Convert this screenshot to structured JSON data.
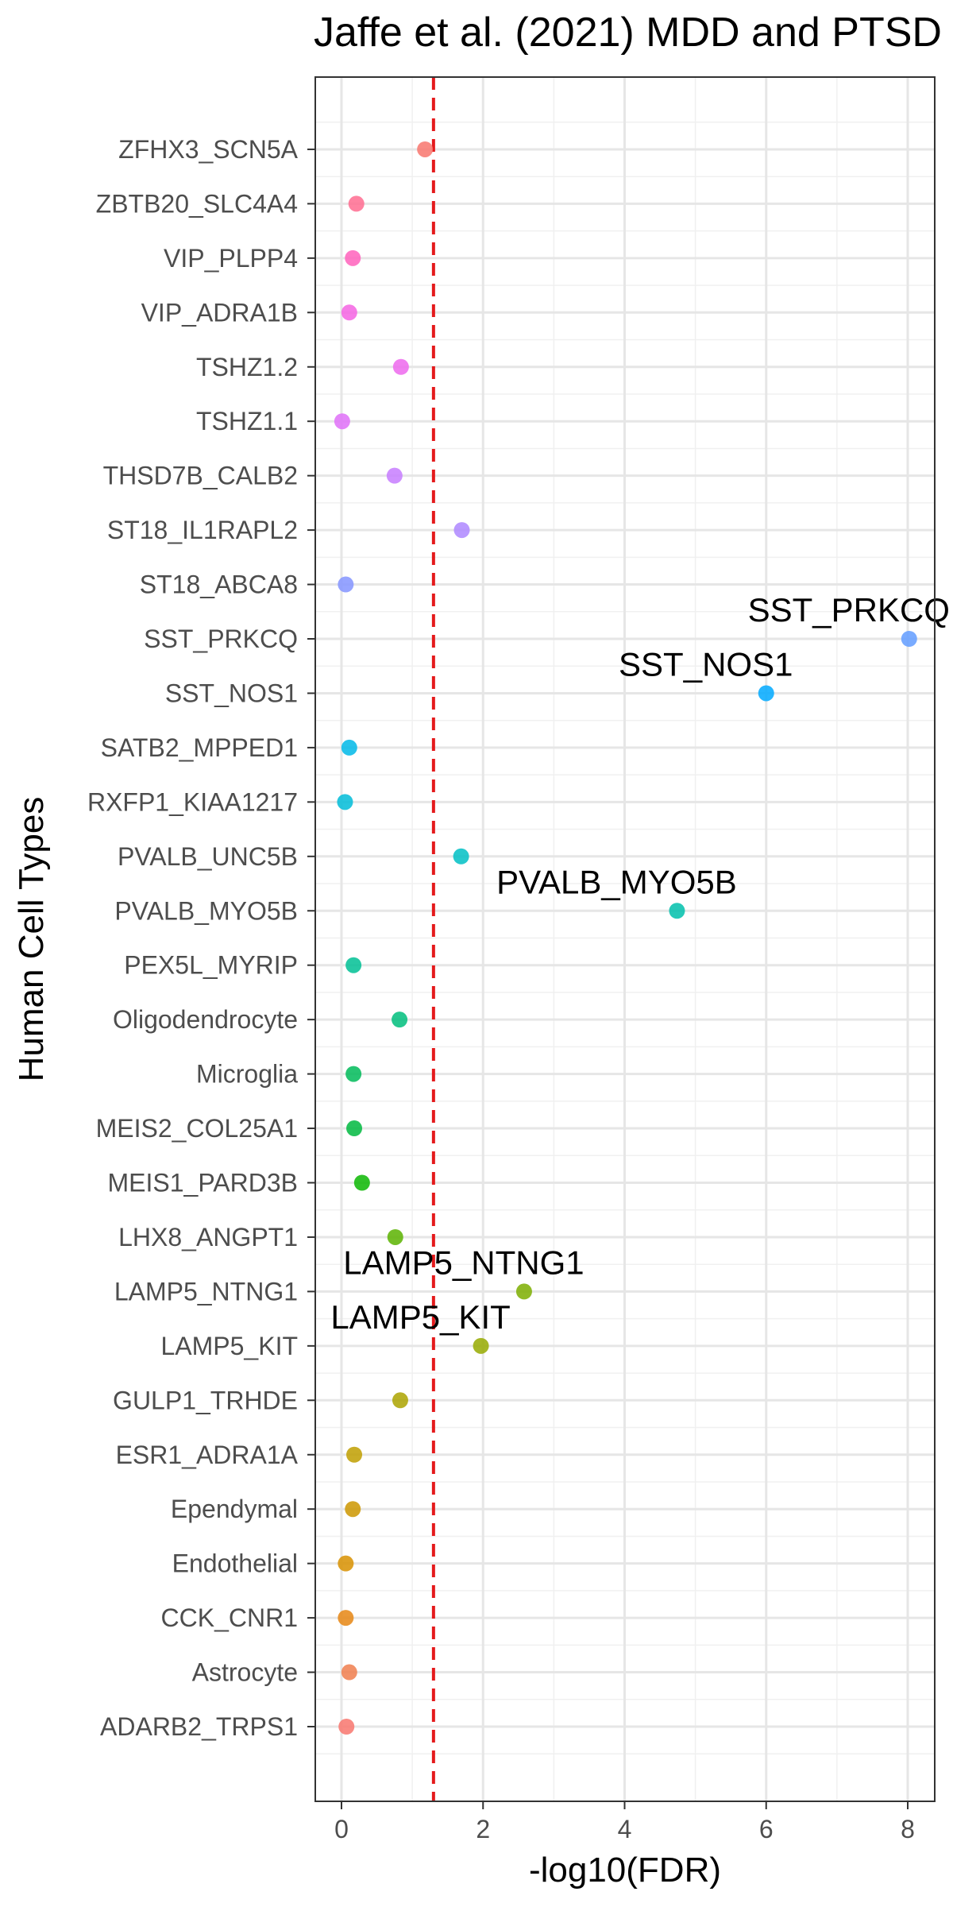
{
  "chart_data": {
    "type": "scatter",
    "title": "Jaffe et al. (2021) MDD and PTSD",
    "xlabel": "-log10(FDR)",
    "ylabel": "Human Cell Types",
    "xlim": [
      -0.38,
      8.4
    ],
    "x_ticks": [
      0,
      2,
      4,
      6,
      8
    ],
    "x_tick_labels": [
      "0",
      "2",
      "4",
      "6",
      "8"
    ],
    "threshold_line": {
      "x": 1.3,
      "color": "#e41a1c",
      "style": "dashed"
    },
    "grid": true,
    "legend": "none",
    "points": [
      {
        "category": "ADARB2_TRPS1",
        "x": 0.07,
        "color": "#F8766D",
        "label": ""
      },
      {
        "category": "Astrocyte",
        "x": 0.11,
        "color": "#F07E4E",
        "label": ""
      },
      {
        "category": "CCK_CNR1",
        "x": 0.06,
        "color": "#E68613",
        "label": ""
      },
      {
        "category": "Endothelial",
        "x": 0.06,
        "color": "#D89000",
        "label": ""
      },
      {
        "category": "Ependymal",
        "x": 0.16,
        "color": "#CD9600",
        "label": ""
      },
      {
        "category": "ESR1_ADRA1A",
        "x": 0.18,
        "color": "#BF9F00",
        "label": ""
      },
      {
        "category": "GULP1_TRHDE",
        "x": 0.83,
        "color": "#ABA300",
        "label": ""
      },
      {
        "category": "LAMP5_KIT",
        "x": 1.97,
        "color": "#97AA00",
        "label": "LAMP5_KIT"
      },
      {
        "category": "LAMP5_NTNG1",
        "x": 2.58,
        "color": "#7CAE00",
        "label": "LAMP5_NTNG1"
      },
      {
        "category": "LHX8_ANGPT1",
        "x": 0.76,
        "color": "#5BB300",
        "label": ""
      },
      {
        "category": "MEIS1_PARD3B",
        "x": 0.29,
        "color": "#0CB702",
        "label": ""
      },
      {
        "category": "MEIS2_COL25A1",
        "x": 0.18,
        "color": "#00B83F",
        "label": ""
      },
      {
        "category": "Microglia",
        "x": 0.17,
        "color": "#00BB59",
        "label": ""
      },
      {
        "category": "Oligodendrocyte",
        "x": 0.82,
        "color": "#00BE7D",
        "label": ""
      },
      {
        "category": "PEX5L_MYRIP",
        "x": 0.17,
        "color": "#00C094",
        "label": ""
      },
      {
        "category": "PVALB_MYO5B",
        "x": 4.74,
        "color": "#00BFAB",
        "label": "PVALB_MYO5B"
      },
      {
        "category": "PVALB_UNC5B",
        "x": 1.69,
        "color": "#00BFC4",
        "label": ""
      },
      {
        "category": "RXFP1_KIAA1217",
        "x": 0.05,
        "color": "#00BCD8",
        "label": ""
      },
      {
        "category": "SATB2_MPPED1",
        "x": 0.11,
        "color": "#00B8E7",
        "label": ""
      },
      {
        "category": "SST_NOS1",
        "x": 6.0,
        "color": "#00A9FF",
        "label": "SST_NOS1"
      },
      {
        "category": "SST_PRKCQ",
        "x": 8.02,
        "color": "#619CFF",
        "label": "SST_PRKCQ"
      },
      {
        "category": "ST18_ABCA8",
        "x": 0.06,
        "color": "#8494FF",
        "label": ""
      },
      {
        "category": "ST18_IL1RAPL2",
        "x": 1.7,
        "color": "#AE87FF",
        "label": ""
      },
      {
        "category": "THSD7B_CALB2",
        "x": 0.75,
        "color": "#C77CFF",
        "label": ""
      },
      {
        "category": "TSHZ1.1",
        "x": 0.01,
        "color": "#DF70F8",
        "label": ""
      },
      {
        "category": "TSHZ1.2",
        "x": 0.84,
        "color": "#ED68ED",
        "label": ""
      },
      {
        "category": "VIP_ADRA1B",
        "x": 0.11,
        "color": "#F564E3",
        "label": ""
      },
      {
        "category": "VIP_PLPP4",
        "x": 0.16,
        "color": "#FF62BC",
        "label": ""
      },
      {
        "category": "ZBTB20_SLC4A4",
        "x": 0.21,
        "color": "#FF6C91",
        "label": ""
      },
      {
        "category": "ZFHX3_SCN5A",
        "x": 1.18,
        "color": "#F8766D",
        "label": ""
      }
    ]
  }
}
